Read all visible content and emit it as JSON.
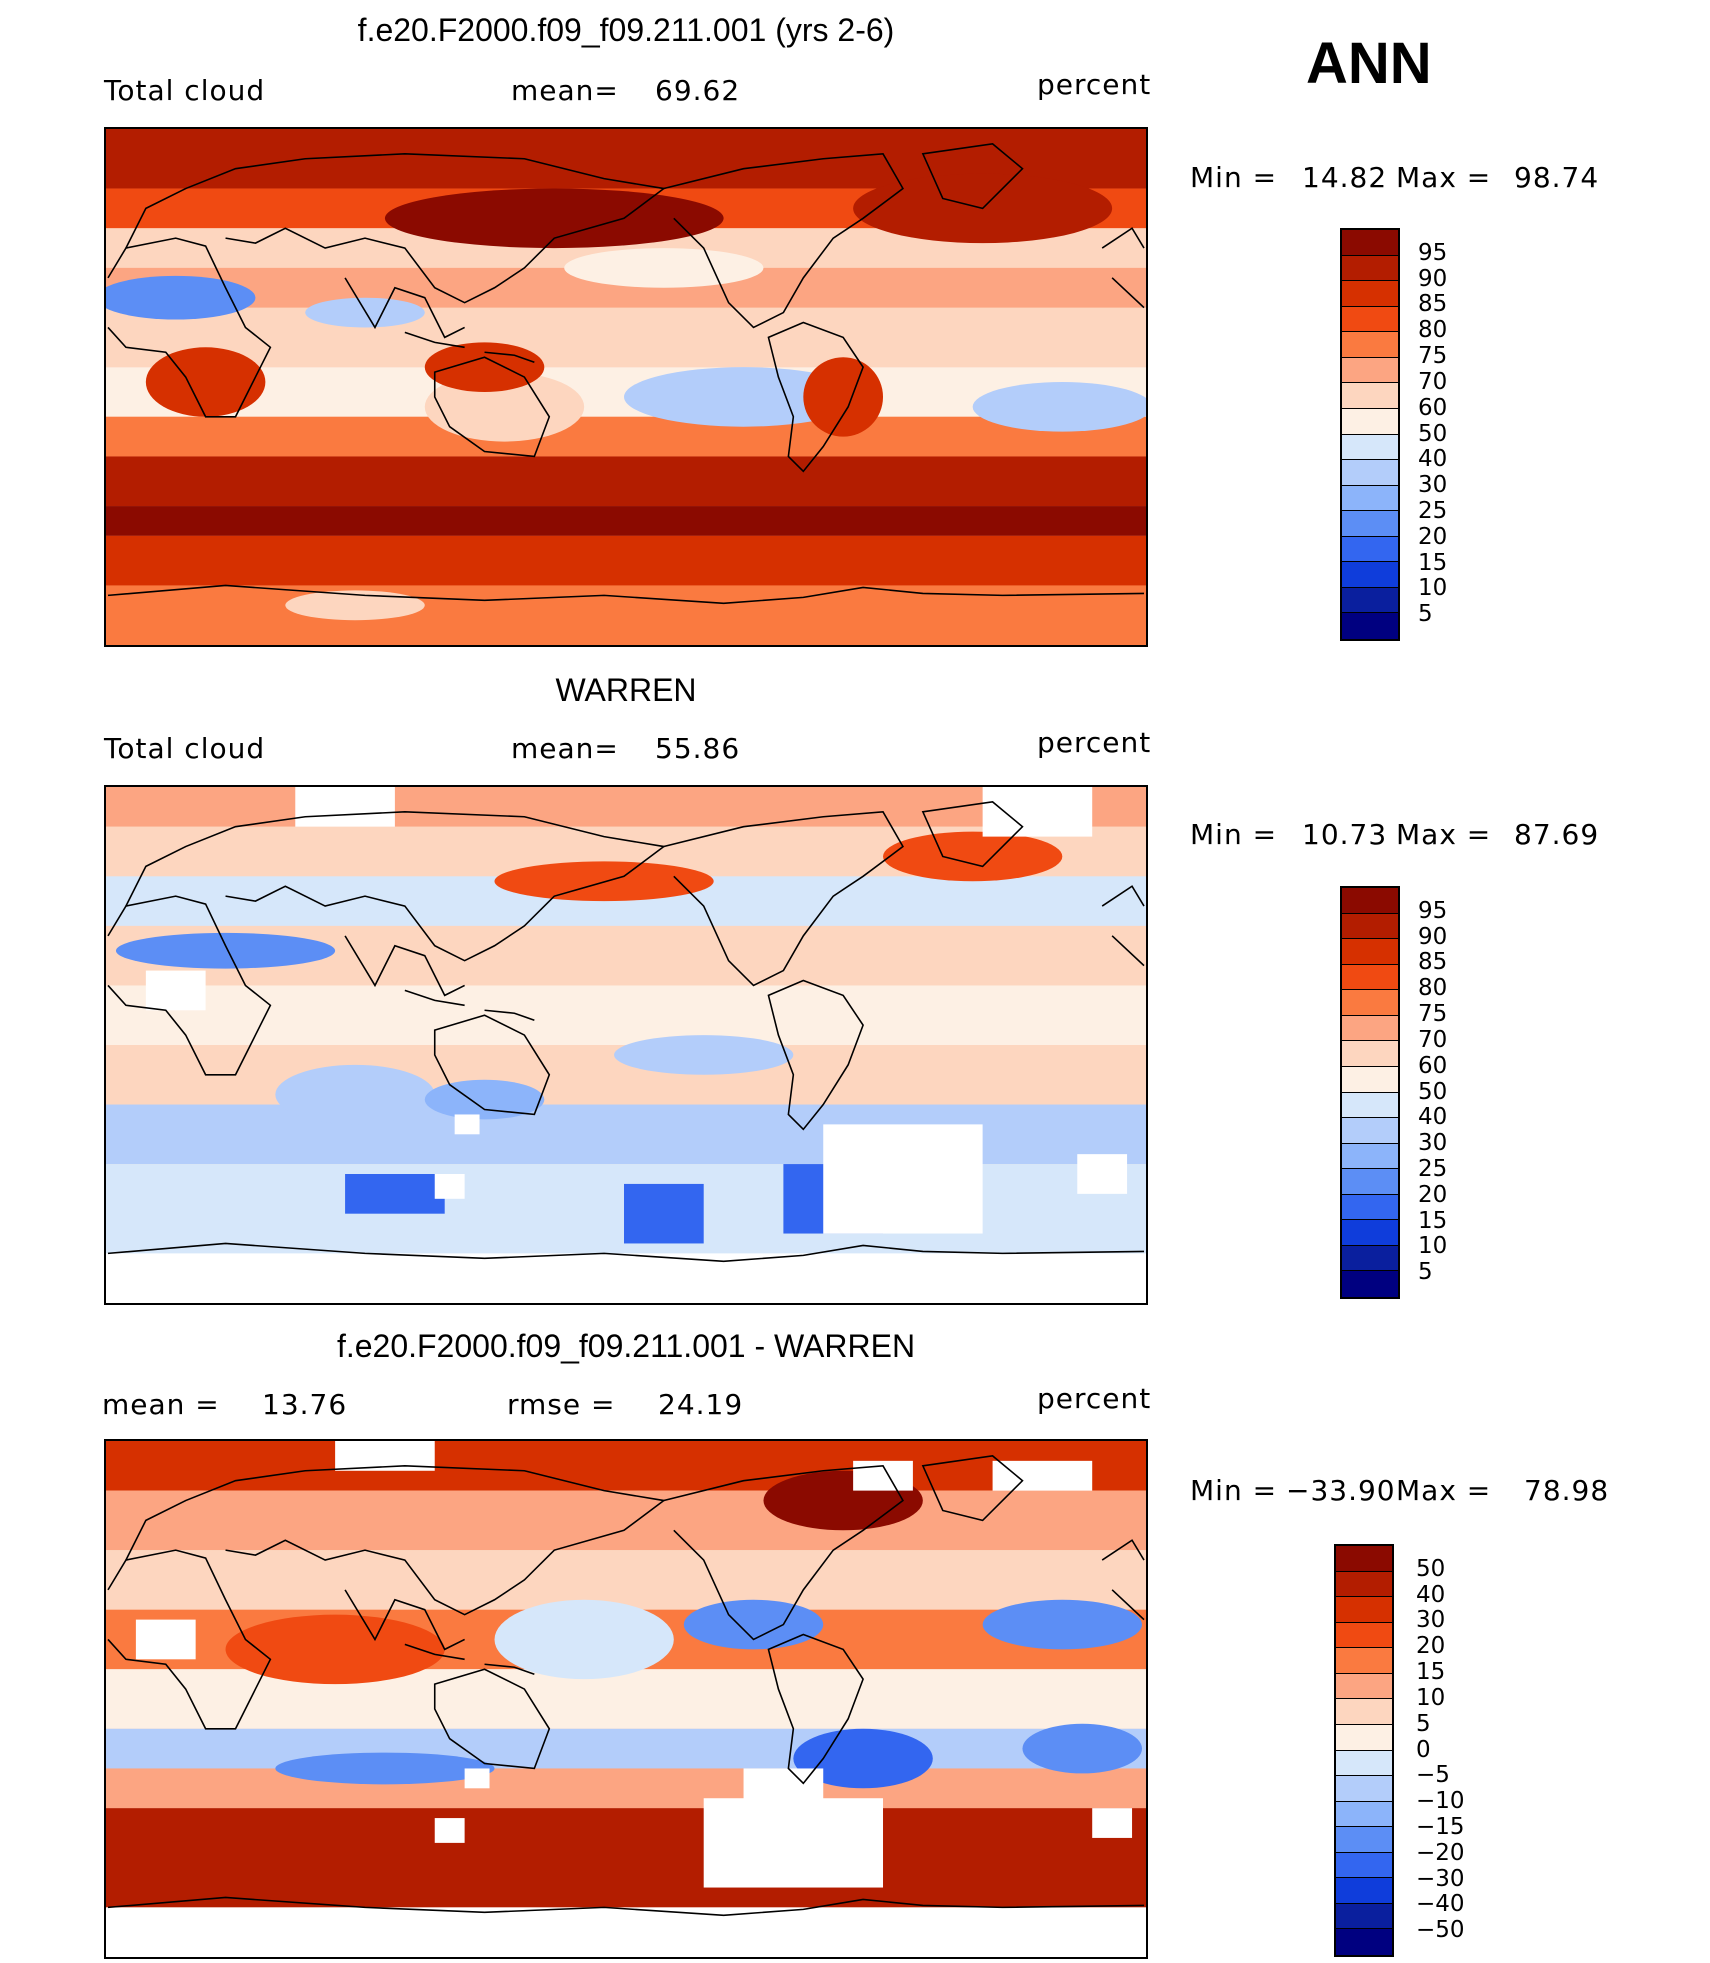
{
  "season": "ANN",
  "panels": [
    {
      "title": "f.e20.F2000.f09_f09.211.001 (yrs 2-6)",
      "left_label": "Total cloud",
      "stat1_label": "mean=",
      "stat1_value": "69.62",
      "stat2_label": "",
      "stat2_value": "",
      "units": "percent",
      "min_label": "Min =",
      "min_value": "14.82",
      "max_label": "Max =",
      "max_value": "98.74",
      "field": "model",
      "colorbar": {
        "labels": [
          "95",
          "90",
          "85",
          "80",
          "75",
          "70",
          "60",
          "50",
          "40",
          "30",
          "25",
          "20",
          "15",
          "10",
          "5"
        ],
        "colors": [
          "#8b0a00",
          "#b31d00",
          "#d63000",
          "#f04a12",
          "#fa7a40",
          "#fca582",
          "#fdd6bf",
          "#fdf0e4",
          "#d6e7fa",
          "#b3cdfa",
          "#8cb4fa",
          "#5c8ef5",
          "#3366f0",
          "#0f3ddb",
          "#0a1f9e",
          "#000080"
        ]
      }
    },
    {
      "title": "WARREN",
      "left_label": "Total cloud",
      "stat1_label": "mean=",
      "stat1_value": "55.86",
      "stat2_label": "",
      "stat2_value": "",
      "units": "percent",
      "min_label": "Min =",
      "min_value": "10.73",
      "max_label": "Max =",
      "max_value": "87.69",
      "field": "obs",
      "colorbar": {
        "labels": [
          "95",
          "90",
          "85",
          "80",
          "75",
          "70",
          "60",
          "50",
          "40",
          "30",
          "25",
          "20",
          "15",
          "10",
          "5"
        ],
        "colors": [
          "#8b0a00",
          "#b31d00",
          "#d63000",
          "#f04a12",
          "#fa7a40",
          "#fca582",
          "#fdd6bf",
          "#fdf0e4",
          "#d6e7fa",
          "#b3cdfa",
          "#8cb4fa",
          "#5c8ef5",
          "#3366f0",
          "#0f3ddb",
          "#0a1f9e",
          "#000080"
        ]
      }
    },
    {
      "title": "f.e20.F2000.f09_f09.211.001 - WARREN",
      "left_label": "",
      "stat1_label": "mean =",
      "stat1_value": "13.76",
      "stat2_label": "rmse =",
      "stat2_value": "24.19",
      "units": "percent",
      "min_label": "Min =",
      "min_value": "−33.90",
      "max_label": "Max =",
      "max_value": "78.98",
      "field": "diff",
      "colorbar": {
        "labels": [
          "50",
          "40",
          "30",
          "20",
          "15",
          "10",
          "5",
          "0",
          "−5",
          "−10",
          "−15",
          "−20",
          "−30",
          "−40",
          "−50"
        ],
        "colors": [
          "#8b0a00",
          "#b31d00",
          "#d63000",
          "#f04a12",
          "#fa7a40",
          "#fca582",
          "#fdd6bf",
          "#fdf0e4",
          "#d6e7fa",
          "#b3cdfa",
          "#8cb4fa",
          "#5c8ef5",
          "#3366f0",
          "#0f3ddb",
          "#0a1f9e",
          "#000080"
        ]
      }
    }
  ]
}
